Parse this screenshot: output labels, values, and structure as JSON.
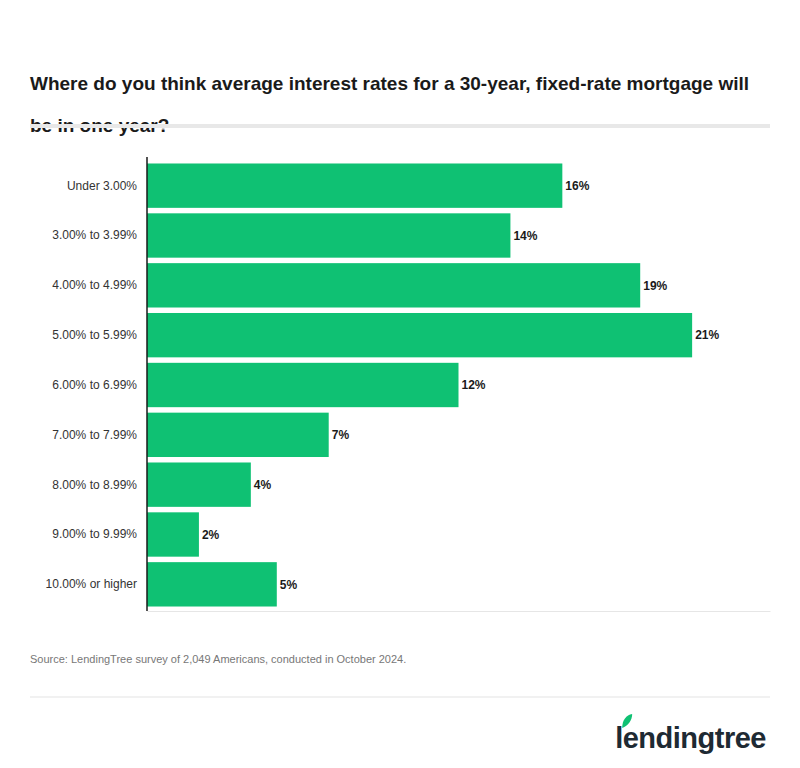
{
  "chart_data": {
    "type": "bar",
    "orientation": "horizontal",
    "title": "Where do you think average interest rates for a 30-year, fixed-rate mortgage will be in one year?",
    "categories": [
      "Under 3.00%",
      "3.00% to 3.99%",
      "4.00% to 4.99%",
      "5.00% to 5.99%",
      "6.00% to 6.99%",
      "7.00% to 7.99%",
      "8.00% to 8.99%",
      "9.00% to 9.99%",
      "10.00% or higher"
    ],
    "values": [
      16,
      14,
      19,
      21,
      12,
      7,
      4,
      2,
      5
    ],
    "value_labels": [
      "16%",
      "14%",
      "19%",
      "21%",
      "12%",
      "7%",
      "4%",
      "2%",
      "5%"
    ],
    "color": "#0fc173",
    "xlim": [
      0,
      24
    ],
    "xticks": [],
    "grid": false,
    "data_labels": true,
    "tick_labels": "y",
    "source": "Source: LendingTree survey of 2,049 Americans, conducted in October 2024.",
    "logo": "lendingtree"
  }
}
